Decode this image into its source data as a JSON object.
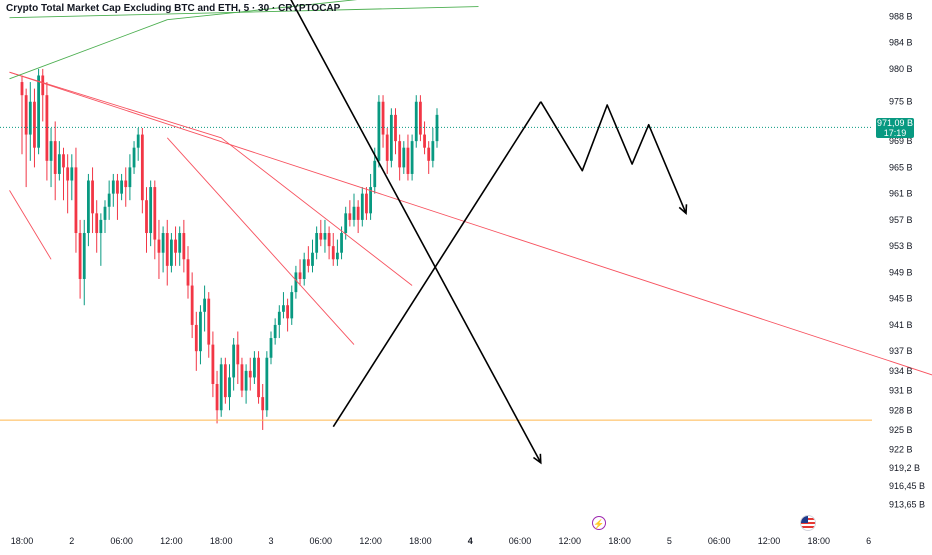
{
  "header": {
    "title": "Crypto Total Market Cap Excluding BTC and ETH, 5 · 30 · CRYPTOCAP"
  },
  "price_tag": {
    "value": "971,09 B",
    "countdown": "17:19"
  },
  "icons": {
    "event": "lightning-icon",
    "flag": "us-flag-icon"
  },
  "colors": {
    "up": "#089981",
    "down": "#f23645",
    "support": "#ffb74d",
    "resistance": "#f7525f",
    "uptrend": "#4caf50",
    "drawing": "#000000",
    "price_line": "#089981"
  },
  "chart_data": {
    "type": "candlestick",
    "title": "Crypto Total Market Cap Excluding BTC and ETH, 5 · 30 · CRYPTOCAP",
    "y_unit": "B",
    "ylim": [
      912.5,
      990.5
    ],
    "y_ticks": [
      {
        "value": 988,
        "label": "988 B"
      },
      {
        "value": 984,
        "label": "984 B"
      },
      {
        "value": 980,
        "label": "980 B"
      },
      {
        "value": 975,
        "label": "975 B"
      },
      {
        "value": 969,
        "label": "969 B"
      },
      {
        "value": 965,
        "label": "965 B"
      },
      {
        "value": 961,
        "label": "961 B"
      },
      {
        "value": 957,
        "label": "957 B"
      },
      {
        "value": 953,
        "label": "953 B"
      },
      {
        "value": 949,
        "label": "949 B"
      },
      {
        "value": 945,
        "label": "945 B"
      },
      {
        "value": 941,
        "label": "941 B"
      },
      {
        "value": 937,
        "label": "937 B"
      },
      {
        "value": 934,
        "label": "934 B"
      },
      {
        "value": 931,
        "label": "931 B"
      },
      {
        "value": 928,
        "label": "928 B"
      },
      {
        "value": 925,
        "label": "925 B"
      },
      {
        "value": 922,
        "label": "922 B"
      },
      {
        "value": 919.2,
        "label": "919,2 B"
      },
      {
        "value": 916.45,
        "label": "916,45 B"
      },
      {
        "value": 913.65,
        "label": "913,65 B"
      }
    ],
    "x_ticks": [
      {
        "bar": 0,
        "label": "18:00",
        "bold": false
      },
      {
        "bar": 12,
        "label": "2",
        "bold": false
      },
      {
        "bar": 24,
        "label": "06:00",
        "bold": false
      },
      {
        "bar": 36,
        "label": "12:00",
        "bold": false
      },
      {
        "bar": 48,
        "label": "18:00",
        "bold": false
      },
      {
        "bar": 60,
        "label": "3",
        "bold": false
      },
      {
        "bar": 72,
        "label": "06:00",
        "bold": false
      },
      {
        "bar": 84,
        "label": "12:00",
        "bold": false
      },
      {
        "bar": 96,
        "label": "18:00",
        "bold": false
      },
      {
        "bar": 108,
        "label": "4",
        "bold": true
      },
      {
        "bar": 120,
        "label": "06:00",
        "bold": false
      },
      {
        "bar": 132,
        "label": "12:00",
        "bold": false
      },
      {
        "bar": 144,
        "label": "18:00",
        "bold": false
      },
      {
        "bar": 156,
        "label": "5",
        "bold": false
      },
      {
        "bar": 168,
        "label": "06:00",
        "bold": false
      },
      {
        "bar": 180,
        "label": "12:00",
        "bold": false
      },
      {
        "bar": 192,
        "label": "18:00",
        "bold": false
      },
      {
        "bar": 204,
        "label": "6",
        "bold": false
      }
    ],
    "last_price": 971.09,
    "support_level": 926.5,
    "candles": [
      [
        978,
        976,
        979,
        967
      ],
      [
        976,
        970,
        977,
        962
      ],
      [
        970,
        975,
        978,
        966
      ],
      [
        975,
        968,
        977,
        965
      ],
      [
        968,
        979,
        980,
        967
      ],
      [
        979,
        976,
        980,
        972
      ],
      [
        976,
        966,
        978,
        963
      ],
      [
        966,
        969,
        971,
        962
      ],
      [
        969,
        964,
        972,
        960
      ],
      [
        964,
        967,
        969,
        963
      ],
      [
        967,
        965,
        968,
        960
      ],
      [
        965,
        963,
        967,
        958
      ],
      [
        963,
        965,
        967,
        960
      ],
      [
        965,
        955,
        968,
        952
      ],
      [
        955,
        948,
        957,
        945
      ],
      [
        948,
        955,
        957,
        944
      ],
      [
        955,
        963,
        964,
        953
      ],
      [
        963,
        958,
        965,
        955
      ],
      [
        958,
        955,
        960,
        952
      ],
      [
        955,
        957,
        958,
        950
      ],
      [
        957,
        959,
        960,
        955
      ],
      [
        959,
        961,
        963,
        957
      ],
      [
        961,
        963,
        964,
        959
      ],
      [
        963,
        961,
        964,
        957
      ],
      [
        961,
        963,
        964,
        960
      ],
      [
        963,
        962,
        965,
        959
      ],
      [
        962,
        965,
        967,
        960
      ],
      [
        965,
        968,
        969,
        964
      ],
      [
        968,
        970,
        971,
        966
      ],
      [
        970,
        960,
        971,
        958
      ],
      [
        960,
        955,
        962,
        952
      ],
      [
        955,
        962,
        963,
        953
      ],
      [
        962,
        954,
        963,
        951
      ],
      [
        954,
        952,
        957,
        948
      ],
      [
        952,
        955,
        956,
        949
      ],
      [
        955,
        950,
        957,
        947
      ],
      [
        950,
        954,
        955,
        949
      ],
      [
        954,
        952,
        956,
        950
      ],
      [
        952,
        955,
        956,
        950
      ],
      [
        955,
        951,
        957,
        949
      ],
      [
        951,
        947,
        953,
        945
      ],
      [
        947,
        941,
        949,
        939
      ],
      [
        941,
        937,
        943,
        934
      ],
      [
        937,
        943,
        944,
        935
      ],
      [
        943,
        945,
        947,
        940
      ],
      [
        945,
        938,
        946,
        936
      ],
      [
        938,
        932,
        940,
        930
      ],
      [
        932,
        928,
        934,
        926
      ],
      [
        928,
        935,
        936,
        927
      ],
      [
        935,
        930,
        936,
        929
      ],
      [
        930,
        933,
        935,
        928
      ],
      [
        933,
        938,
        939,
        931
      ],
      [
        938,
        935,
        940,
        932
      ],
      [
        935,
        931,
        936,
        930
      ],
      [
        931,
        934,
        935,
        929
      ],
      [
        934,
        933,
        936,
        931
      ],
      [
        933,
        936,
        937,
        932
      ],
      [
        936,
        930,
        937,
        929
      ],
      [
        930,
        928,
        932,
        925
      ],
      [
        928,
        936,
        937,
        927
      ],
      [
        936,
        939,
        940,
        935
      ],
      [
        939,
        941,
        942,
        938
      ],
      [
        941,
        943,
        944,
        939
      ],
      [
        943,
        944,
        946,
        942
      ],
      [
        944,
        942,
        945,
        940
      ],
      [
        942,
        946,
        947,
        941
      ],
      [
        946,
        949,
        950,
        945
      ],
      [
        949,
        948,
        951,
        947
      ],
      [
        948,
        951,
        952,
        947
      ],
      [
        951,
        950,
        953,
        949
      ],
      [
        950,
        952,
        954,
        949
      ],
      [
        952,
        955,
        956,
        951
      ],
      [
        955,
        954,
        957,
        953
      ],
      [
        954,
        955,
        957,
        952
      ],
      [
        955,
        953,
        956,
        951
      ],
      [
        953,
        951,
        955,
        950
      ],
      [
        951,
        952,
        954,
        950
      ],
      [
        952,
        955,
        956,
        951
      ],
      [
        955,
        958,
        959,
        954
      ],
      [
        958,
        957,
        960,
        956
      ],
      [
        957,
        959,
        961,
        956
      ],
      [
        959,
        957,
        960,
        955
      ],
      [
        957,
        961,
        962,
        956
      ],
      [
        961,
        958,
        962,
        957
      ],
      [
        958,
        962,
        964,
        957
      ],
      [
        962,
        966,
        968,
        961
      ],
      [
        966,
        975,
        976,
        965
      ],
      [
        975,
        970,
        976,
        968
      ],
      [
        970,
        966,
        971,
        964
      ],
      [
        966,
        973,
        974,
        965
      ],
      [
        973,
        969,
        974,
        967
      ],
      [
        969,
        965,
        970,
        963
      ],
      [
        965,
        968,
        969,
        964
      ],
      [
        968,
        964,
        970,
        963
      ],
      [
        964,
        969,
        970,
        963
      ],
      [
        969,
        975,
        976,
        968
      ],
      [
        975,
        970,
        976,
        969
      ],
      [
        970,
        968,
        972,
        967
      ],
      [
        968,
        966,
        969,
        964
      ],
      [
        966,
        969,
        971,
        965
      ],
      [
        969,
        973,
        974,
        968
      ]
    ],
    "trend_lines": [
      {
        "kind": "resistance",
        "points": [
          [
            -3,
            979.5
          ],
          [
            226,
            932
          ]
        ]
      },
      {
        "kind": "resistance",
        "points": [
          [
            -3,
            979.5
          ],
          [
            48,
            969.5
          ],
          [
            94,
            947
          ]
        ]
      },
      {
        "kind": "resistance",
        "points": [
          [
            35,
            969.5
          ],
          [
            80,
            938
          ]
        ]
      },
      {
        "kind": "resistance",
        "points": [
          [
            -3,
            961.5
          ],
          [
            7,
            951
          ]
        ]
      },
      {
        "kind": "uptrend",
        "points": [
          [
            -3,
            978.5
          ],
          [
            35,
            987.5
          ],
          [
            102,
            992
          ]
        ]
      },
      {
        "kind": "uptrend",
        "points": [
          [
            -3,
            987.8
          ],
          [
            110,
            989.5
          ]
        ]
      },
      {
        "kind": "projection",
        "points": [
          [
            61,
            995
          ],
          [
            125,
            920
          ]
        ]
      },
      {
        "kind": "projection",
        "points": [
          [
            75,
            925.5
          ],
          [
            125,
            975
          ]
        ]
      },
      {
        "kind": "projection",
        "points": [
          [
            125,
            975
          ],
          [
            135,
            964.5
          ],
          [
            141,
            974.5
          ],
          [
            147,
            965.5
          ],
          [
            151,
            971.5
          ],
          [
            160,
            958
          ]
        ]
      }
    ]
  }
}
